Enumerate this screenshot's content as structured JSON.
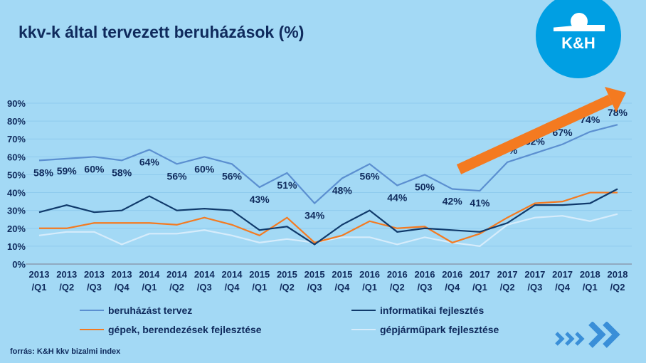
{
  "title": "kkv-k által tervezett beruházások (%)",
  "logo_text": "K&H",
  "source": "forrás: K&H kkv bizalmi index",
  "colors": {
    "background": "#a3d9f5",
    "beruhazas": "#5b8fd0",
    "informatika": "#103a6b",
    "gepek": "#f47a20",
    "gepjarmu": "#d6ecfb",
    "arrow": "#f47a20",
    "logo": "#009fe3"
  },
  "chart_data": {
    "type": "line",
    "title": "kkv-k által tervezett beruházások (%)",
    "ylim": [
      0,
      90
    ],
    "yticks": [
      "0%",
      "10%",
      "20%",
      "30%",
      "40%",
      "50%",
      "60%",
      "70%",
      "80%",
      "90%"
    ],
    "categories": [
      [
        "2013",
        "/Q1"
      ],
      [
        "2013",
        "/Q2"
      ],
      [
        "2013",
        "/Q3"
      ],
      [
        "2013",
        "/Q4"
      ],
      [
        "2014",
        "/Q1"
      ],
      [
        "2014",
        "/Q2"
      ],
      [
        "2014",
        "/Q3"
      ],
      [
        "2014",
        "/Q4"
      ],
      [
        "2015",
        "/Q1"
      ],
      [
        "2015",
        "/Q2"
      ],
      [
        "2015",
        "/Q3"
      ],
      [
        "2015",
        "/Q4"
      ],
      [
        "2016",
        "/Q1"
      ],
      [
        "2016",
        "/Q2"
      ],
      [
        "2016",
        "/Q3"
      ],
      [
        "2016",
        "/Q4"
      ],
      [
        "2017",
        "/Q1"
      ],
      [
        "2017",
        "/Q2"
      ],
      [
        "2017",
        "/Q3"
      ],
      [
        "2017",
        "/Q4"
      ],
      [
        "2018",
        "/Q1"
      ],
      [
        "2018",
        "/Q2"
      ]
    ],
    "series": [
      {
        "name": "beruházást  tervez",
        "color": "#5b8fd0",
        "labels": true,
        "values": [
          58,
          59,
          60,
          58,
          64,
          56,
          60,
          56,
          43,
          51,
          34,
          48,
          56,
          44,
          50,
          42,
          41,
          57,
          62,
          67,
          74,
          78
        ]
      },
      {
        "name": "informatikai fejlesztés",
        "color": "#103a6b",
        "values": [
          29,
          33,
          29,
          30,
          38,
          30,
          31,
          30,
          19,
          21,
          11,
          22,
          30,
          18,
          20,
          19,
          18,
          23,
          33,
          33,
          34,
          42
        ]
      },
      {
        "name": "gépek, berendezések fejlesztése",
        "color": "#f47a20",
        "values": [
          20,
          20,
          23,
          23,
          23,
          22,
          26,
          22,
          16,
          26,
          12,
          16,
          24,
          20,
          21,
          12,
          17,
          26,
          34,
          35,
          40,
          40
        ]
      },
      {
        "name": "gépjárműpark fejlesztése",
        "color": "#d6ecfb",
        "values": [
          16,
          18,
          18,
          11,
          17,
          17,
          19,
          16,
          12,
          14,
          12,
          15,
          15,
          11,
          15,
          12,
          10,
          22,
          26,
          27,
          24,
          28
        ]
      }
    ],
    "legend_position": "bottom",
    "grid": true
  }
}
